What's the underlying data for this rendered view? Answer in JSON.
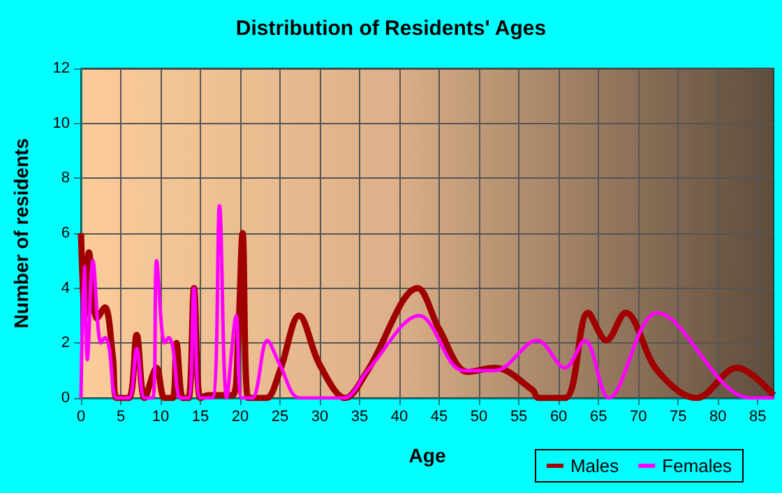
{
  "chart_data": {
    "type": "line",
    "title": "Distribution of Residents' Ages",
    "xlabel": "Age",
    "ylabel": "Number of residents",
    "xlim": [
      0,
      87
    ],
    "xticks": [
      0,
      5,
      10,
      15,
      20,
      25,
      30,
      35,
      40,
      45,
      50,
      55,
      60,
      65,
      70,
      75,
      80,
      85
    ],
    "ylim": [
      0,
      12
    ],
    "yticks": [
      0,
      2,
      4,
      6,
      8,
      10,
      12
    ],
    "grid": true,
    "legend": "bottom right",
    "marker": "none",
    "line_style": "solid",
    "series": [
      {
        "name": "Males",
        "color": "#a00000",
        "x": [
          0,
          0.5,
          1,
          2,
          3,
          4,
          4.5,
          6,
          7,
          8,
          9.5,
          10.5,
          11.5,
          12,
          12.8,
          13.5,
          14.2,
          15,
          16,
          19,
          19.7,
          20.3,
          21,
          22,
          23.3,
          25,
          27.4,
          30,
          33.2,
          36,
          42.3,
          45,
          48.6,
          52,
          56.7,
          57.5,
          60.8,
          63.7,
          66,
          68.4,
          72.4,
          77.3,
          82.4,
          87
        ],
        "values": [
          6,
          3,
          5.3,
          2.9,
          3.3,
          1.5,
          0,
          0,
          2.3,
          0,
          1.1,
          0,
          0,
          2,
          0,
          0,
          4,
          0,
          0.1,
          0.1,
          2,
          6,
          0,
          0,
          0,
          1,
          3,
          1.2,
          0,
          1,
          4,
          2.5,
          0.95,
          1.1,
          0.3,
          0,
          0,
          3.1,
          2.1,
          3.1,
          1,
          0,
          1.1,
          0.1
        ]
      },
      {
        "name": "Females",
        "color": "#ff00ff",
        "x": [
          0,
          0.4,
          0.8,
          1.5,
          2.5,
          3,
          3.5,
          4.5,
          6,
          7,
          8,
          9,
          9.5,
          10.5,
          11,
          11.5,
          12.5,
          13.5,
          14.2,
          15,
          16.5,
          17.4,
          18.3,
          19.5,
          20.2,
          21.5,
          23.4,
          25,
          27.5,
          33,
          36,
          42.5,
          48,
          52,
          57.3,
          60.8,
          63.3,
          66.3,
          72.4,
          84,
          87
        ],
        "values": [
          0,
          4.8,
          1.4,
          5,
          2,
          2.2,
          1.9,
          0,
          0,
          1.8,
          0,
          0,
          5,
          2,
          2.2,
          1.9,
          0,
          0,
          4,
          0,
          0,
          7,
          0,
          3,
          0,
          0,
          2.1,
          1.2,
          0,
          0,
          1,
          3,
          1,
          1,
          2.1,
          1.1,
          2.1,
          0,
          3.1,
          0,
          0
        ]
      }
    ]
  }
}
